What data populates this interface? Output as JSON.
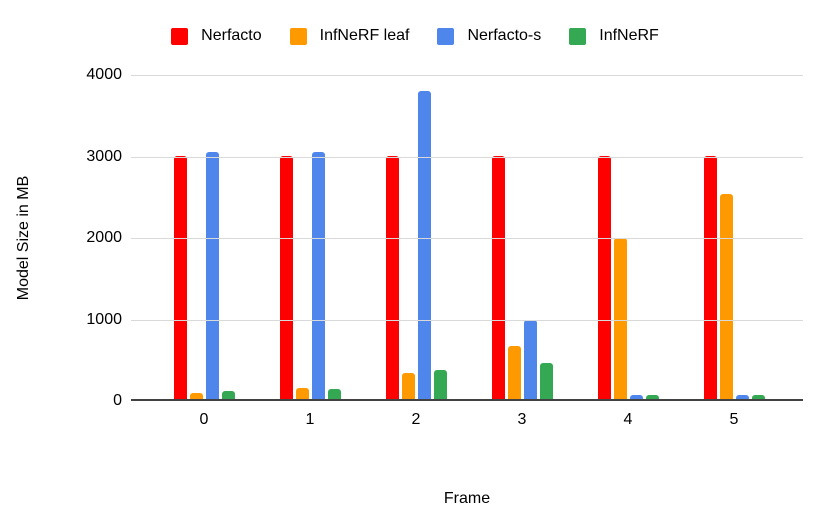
{
  "chart_data": {
    "type": "bar",
    "title": "",
    "xlabel": "Frame",
    "ylabel": "Model Size in MB",
    "categories": [
      "0",
      "1",
      "2",
      "3",
      "4",
      "5"
    ],
    "series": [
      {
        "name": "Nerfacto",
        "color": "#ff0000",
        "values": [
          2980,
          2980,
          2980,
          2980,
          2980,
          2980
        ]
      },
      {
        "name": "InfNeRF leaf",
        "color": "#ff9900",
        "values": [
          80,
          135,
          320,
          650,
          1970,
          2520
        ]
      },
      {
        "name": "Nerfacto-s",
        "color": "#4e86ec",
        "values": [
          3030,
          3030,
          3780,
          970,
          45,
          45
        ]
      },
      {
        "name": "InfNeRF",
        "color": "#34a853",
        "values": [
          95,
          125,
          360,
          440,
          45,
          45
        ]
      }
    ],
    "ylim": [
      0,
      4000
    ],
    "yticks": [
      0,
      1000,
      2000,
      3000,
      4000
    ],
    "grid": true,
    "legend_position": "top"
  },
  "colors": {
    "grid": "#d9d9d9",
    "baseline": "#424242",
    "text": "#000000",
    "background": "#ffffff"
  }
}
